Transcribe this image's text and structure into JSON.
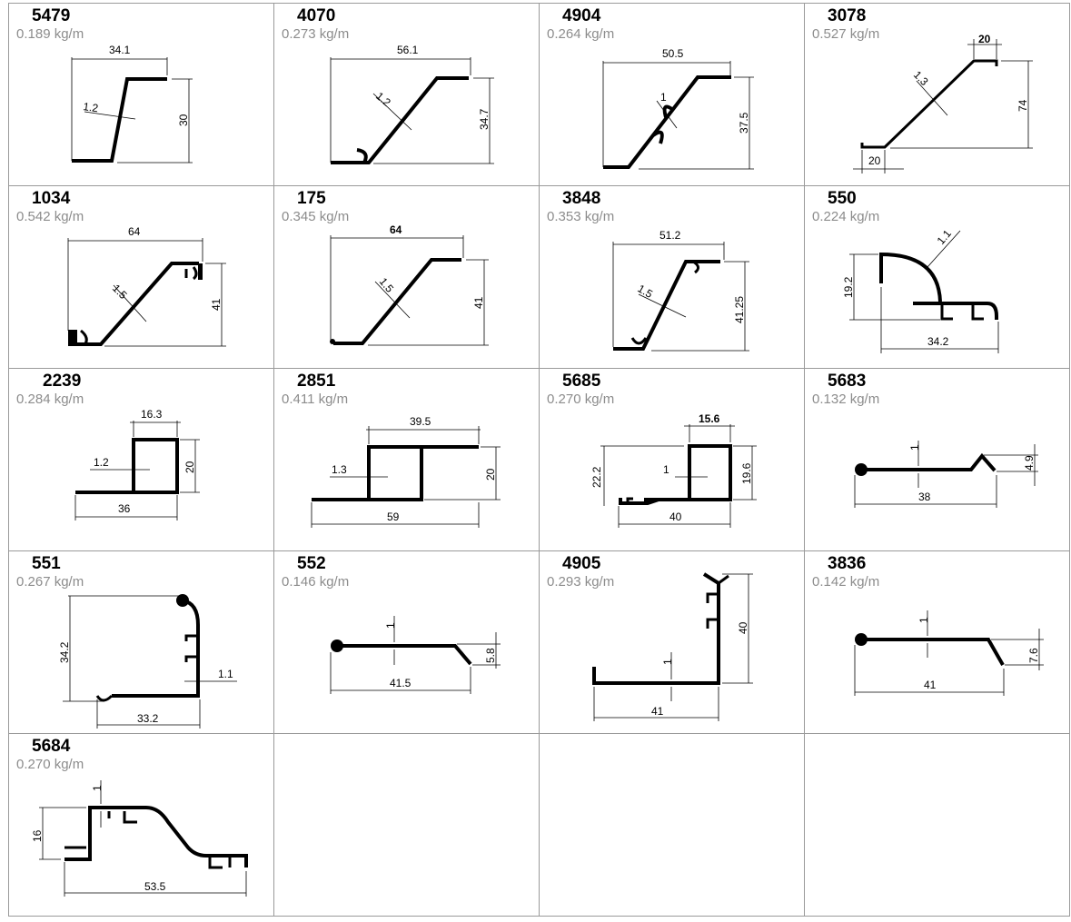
{
  "profiles": [
    {
      "code": "5479",
      "weight": "0.189 kg/m",
      "dims": [
        "34.1",
        "30",
        "1.2"
      ]
    },
    {
      "code": "4070",
      "weight": "0.273 kg/m",
      "dims": [
        "56.1",
        "34.7",
        "1.2"
      ]
    },
    {
      "code": "4904",
      "weight": "0.264 kg/m",
      "dims": [
        "50.5",
        "37.5",
        "1"
      ]
    },
    {
      "code": "3078",
      "weight": "0.527 kg/m",
      "dims": [
        "20",
        "74",
        "1.3",
        "20"
      ]
    },
    {
      "code": "1034",
      "weight": "0.542 kg/m",
      "dims": [
        "64",
        "41",
        "1.5"
      ]
    },
    {
      "code": "175",
      "weight": "0.345 kg/m",
      "dims": [
        "64",
        "41",
        "1.5"
      ]
    },
    {
      "code": "3848",
      "weight": "0.353 kg/m",
      "dims": [
        "51.2",
        "41.25",
        "1.5"
      ]
    },
    {
      "code": "550",
      "weight": "0.224 kg/m",
      "dims": [
        "1.1",
        "19.2",
        "34.2"
      ]
    },
    {
      "code": "2239",
      "weight": "0.284 kg/m",
      "dims": [
        "16.3",
        "20",
        "1.2",
        "36"
      ]
    },
    {
      "code": "2851",
      "weight": "0.411 kg/m",
      "dims": [
        "39.5",
        "20",
        "1.3",
        "59"
      ]
    },
    {
      "code": "5685",
      "weight": "0.270 kg/m",
      "dims": [
        "15.6",
        "22.2",
        "19.6",
        "1",
        "40"
      ]
    },
    {
      "code": "5683",
      "weight": "0.132 kg/m",
      "dims": [
        "1",
        "4.9",
        "38"
      ]
    },
    {
      "code": "551",
      "weight": "0.267 kg/m",
      "dims": [
        "34.2",
        "1.1",
        "33.2"
      ]
    },
    {
      "code": "552",
      "weight": "0.146 kg/m",
      "dims": [
        "1",
        "5.8",
        "41.5"
      ]
    },
    {
      "code": "4905",
      "weight": "0.293 kg/m",
      "dims": [
        "40",
        "1",
        "41"
      ]
    },
    {
      "code": "3836",
      "weight": "0.142 kg/m",
      "dims": [
        "1",
        "7.6",
        "41"
      ]
    },
    {
      "code": "5684",
      "weight": "0.270 kg/m",
      "dims": [
        "1",
        "16",
        "53.5"
      ]
    }
  ]
}
